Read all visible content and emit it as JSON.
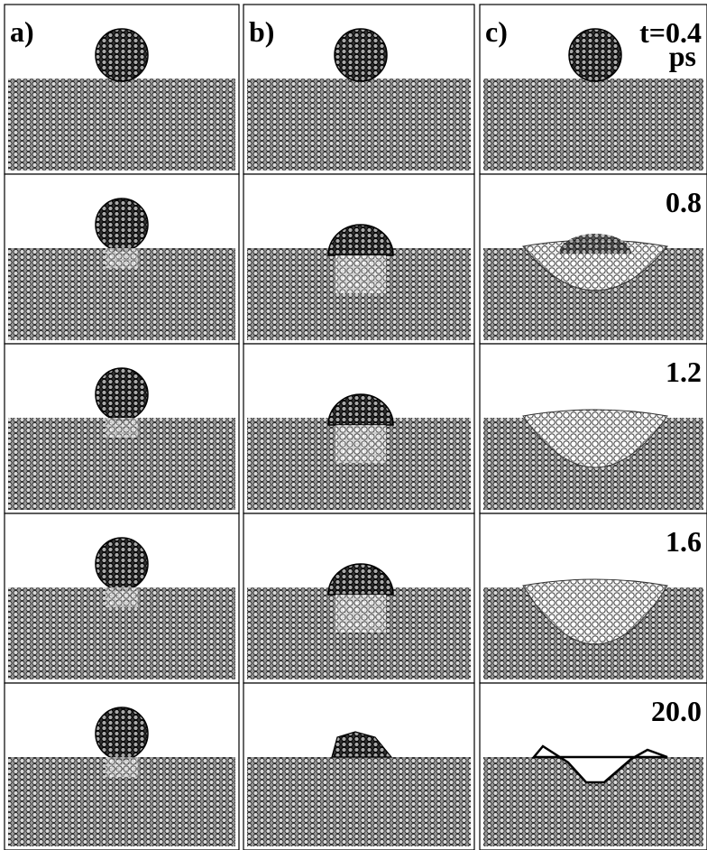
{
  "panels": {
    "columns": [
      "a)",
      "b)",
      "c)"
    ],
    "times": [
      {
        "label": "t=0.4",
        "unit": "ps"
      },
      {
        "label": "0.8"
      },
      {
        "label": "1.2"
      },
      {
        "label": "1.6"
      },
      {
        "label": "20.0"
      }
    ]
  }
}
